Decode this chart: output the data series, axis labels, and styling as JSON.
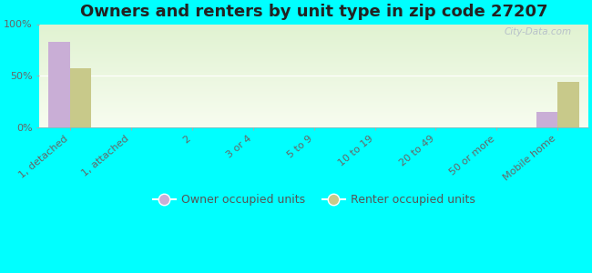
{
  "title": "Owners and renters by unit type in zip code 27207",
  "categories": [
    "1, detached",
    "1, attached",
    "2",
    "3 or 4",
    "5 to 9",
    "10 to 19",
    "20 to 49",
    "50 or more",
    "Mobile home"
  ],
  "owner_values": [
    83,
    0,
    0,
    0,
    0,
    0,
    0,
    0,
    15
  ],
  "renter_values": [
    57,
    0,
    0,
    0,
    0,
    0,
    0,
    0,
    44
  ],
  "owner_color": "#c9aed6",
  "renter_color": "#c8c98a",
  "background_color": "#00ffff",
  "ylabel_ticks": [
    "0%",
    "50%",
    "100%"
  ],
  "yticks": [
    0,
    50,
    100
  ],
  "ylim": [
    0,
    100
  ],
  "bar_width": 0.35,
  "title_fontsize": 13,
  "legend_labels": [
    "Owner occupied units",
    "Renter occupied units"
  ],
  "watermark": "City-Data.com"
}
